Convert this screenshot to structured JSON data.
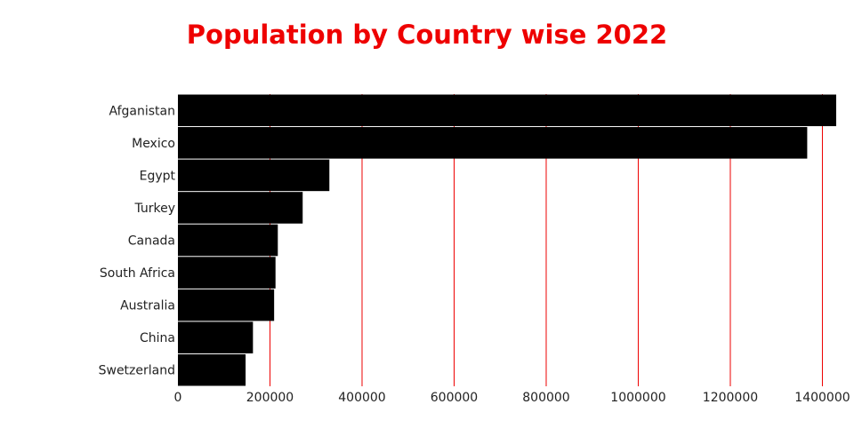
{
  "chart_data": {
    "type": "bar",
    "orientation": "horizontal",
    "title": "Population by Country wise 2022",
    "xlabel": "",
    "ylabel": "",
    "categories": [
      "Afganistan",
      "Mexico",
      "Egypt",
      "Turkey",
      "Canada",
      "South Africa",
      "Australia",
      "China",
      "Swetzerland"
    ],
    "values": [
      1430000,
      1367000,
      329000,
      271000,
      217000,
      212000,
      209000,
      163000,
      147000
    ],
    "xlim": [
      0,
      1430000
    ],
    "xticks": [
      0,
      200000,
      400000,
      600000,
      800000,
      1000000,
      1200000,
      1400000
    ],
    "xtick_labels": [
      "0",
      "200000",
      "400000",
      "600000",
      "800000",
      "1000000",
      "1200000",
      "1400000"
    ],
    "grid": "vertical",
    "legend": "none",
    "colors": {
      "bar": "#000000",
      "grid": "#ee0000",
      "title": "#ee0000"
    }
  }
}
